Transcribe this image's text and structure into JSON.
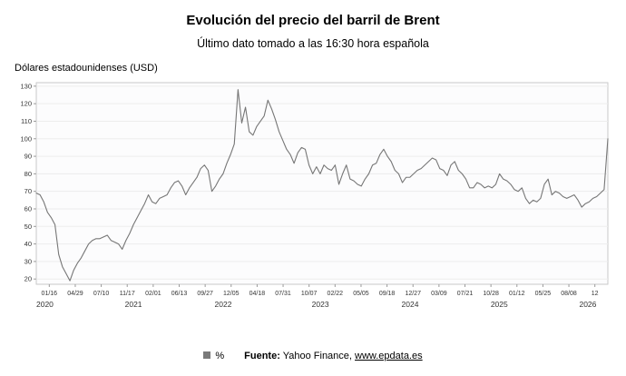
{
  "header": {
    "title": "Evolución del precio del barril de Brent",
    "subtitle": "Último dato tomado a las 16:30 hora española"
  },
  "axis_unit_label": "Dólares estadounidenses (USD)",
  "legend": {
    "label": "%",
    "swatch_color": "#7a7a7a"
  },
  "footer": {
    "source_label": "Fuente:",
    "source_text": " Yahoo Finance, ",
    "link_text": "www.epdata.es"
  },
  "chart_data": {
    "type": "line",
    "title": "Evolución del precio del barril de Brent",
    "xlabel": "",
    "ylabel": "Dólares estadounidenses (USD)",
    "ylim": [
      17,
      132
    ],
    "yticks": [
      20,
      30,
      40,
      50,
      60,
      70,
      80,
      90,
      100,
      110,
      120,
      130
    ],
    "grid": true,
    "legend_position": "bottom",
    "line_color": "#767676",
    "plot_bg": "#fcfcfd",
    "border_color": "#c9c9c9",
    "grid_color": "#ededed",
    "tick_text_color": "#333333",
    "xticklabels": [
      "01/16",
      "04/29",
      "07/10",
      "11/17",
      "02/01",
      "06/13",
      "09/27",
      "12/05",
      "04/18",
      "07/31",
      "10/07",
      "02/22",
      "05/05",
      "09/18",
      "12/27",
      "03/09",
      "07/21",
      "10/28",
      "01/12",
      "05/25",
      "08/08",
      "12"
    ],
    "year_labels": [
      "2020",
      "2021",
      "2022",
      "2023",
      "2024",
      "2025",
      "2026"
    ],
    "year_positions": [
      0.0,
      0.17,
      0.327,
      0.497,
      0.654,
      0.81,
      0.98
    ],
    "series": [
      {
        "name": "%",
        "color": "#767676",
        "values": [
          69,
          68,
          64,
          58,
          55,
          51,
          34,
          27,
          23,
          19,
          25,
          29,
          32,
          36,
          40,
          42,
          43,
          43,
          44,
          45,
          42,
          41,
          40,
          37,
          42,
          46,
          51,
          55,
          59,
          63,
          68,
          64,
          63,
          66,
          67,
          68,
          72,
          75,
          76,
          73,
          68,
          72,
          75,
          78,
          83,
          85,
          82,
          70,
          73,
          77,
          80,
          86,
          91,
          97,
          128,
          109,
          118,
          104,
          102,
          107,
          110,
          113,
          122,
          117,
          111,
          104,
          99,
          94,
          91,
          86,
          92,
          95,
          94,
          85,
          80,
          84,
          80,
          85,
          83,
          82,
          85,
          74,
          80,
          85,
          77,
          76,
          74,
          73,
          77,
          80,
          85,
          86,
          91,
          94,
          90,
          87,
          82,
          80,
          75,
          78,
          78,
          80,
          82,
          83,
          85,
          87,
          89,
          88,
          83,
          82,
          79,
          85,
          87,
          82,
          80,
          77,
          72,
          72,
          75,
          74,
          72,
          73,
          72,
          74,
          80,
          77,
          76,
          74,
          71,
          70,
          72,
          66,
          63,
          65,
          64,
          66,
          74,
          77,
          68,
          70,
          69,
          67,
          66,
          67,
          68,
          65,
          61,
          63,
          64,
          66,
          67,
          69,
          71,
          100
        ]
      }
    ]
  }
}
